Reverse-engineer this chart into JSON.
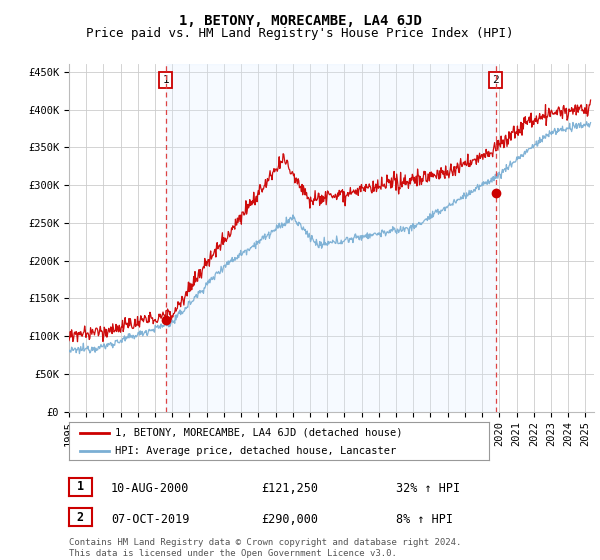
{
  "title": "1, BETONY, MORECAMBE, LA4 6JD",
  "subtitle": "Price paid vs. HM Land Registry's House Price Index (HPI)",
  "ylabel_ticks": [
    "£0",
    "£50K",
    "£100K",
    "£150K",
    "£200K",
    "£250K",
    "£300K",
    "£350K",
    "£400K",
    "£450K"
  ],
  "ytick_values": [
    0,
    50000,
    100000,
    150000,
    200000,
    250000,
    300000,
    350000,
    400000,
    450000
  ],
  "ylim": [
    0,
    460000
  ],
  "xlim_start": 1995.0,
  "xlim_end": 2025.5,
  "sale1_x": 2000.62,
  "sale1_y": 121250,
  "sale2_x": 2019.78,
  "sale2_y": 290000,
  "sale1_label": "1",
  "sale2_label": "2",
  "line_color_red": "#cc0000",
  "line_color_blue": "#7bafd4",
  "shade_color": "#ddeeff",
  "dashed_vline_color": "#dd4444",
  "grid_color": "#cccccc",
  "background_color": "#ffffff",
  "legend_line1": "1, BETONY, MORECAMBE, LA4 6JD (detached house)",
  "legend_line2": "HPI: Average price, detached house, Lancaster",
  "annotation1_date": "10-AUG-2000",
  "annotation1_price": "£121,250",
  "annotation1_hpi": "32% ↑ HPI",
  "annotation2_date": "07-OCT-2019",
  "annotation2_price": "£290,000",
  "annotation2_hpi": "8% ↑ HPI",
  "footer": "Contains HM Land Registry data © Crown copyright and database right 2024.\nThis data is licensed under the Open Government Licence v3.0.",
  "title_fontsize": 10,
  "subtitle_fontsize": 9,
  "tick_fontsize": 7.5,
  "anno_fontsize": 8.5
}
